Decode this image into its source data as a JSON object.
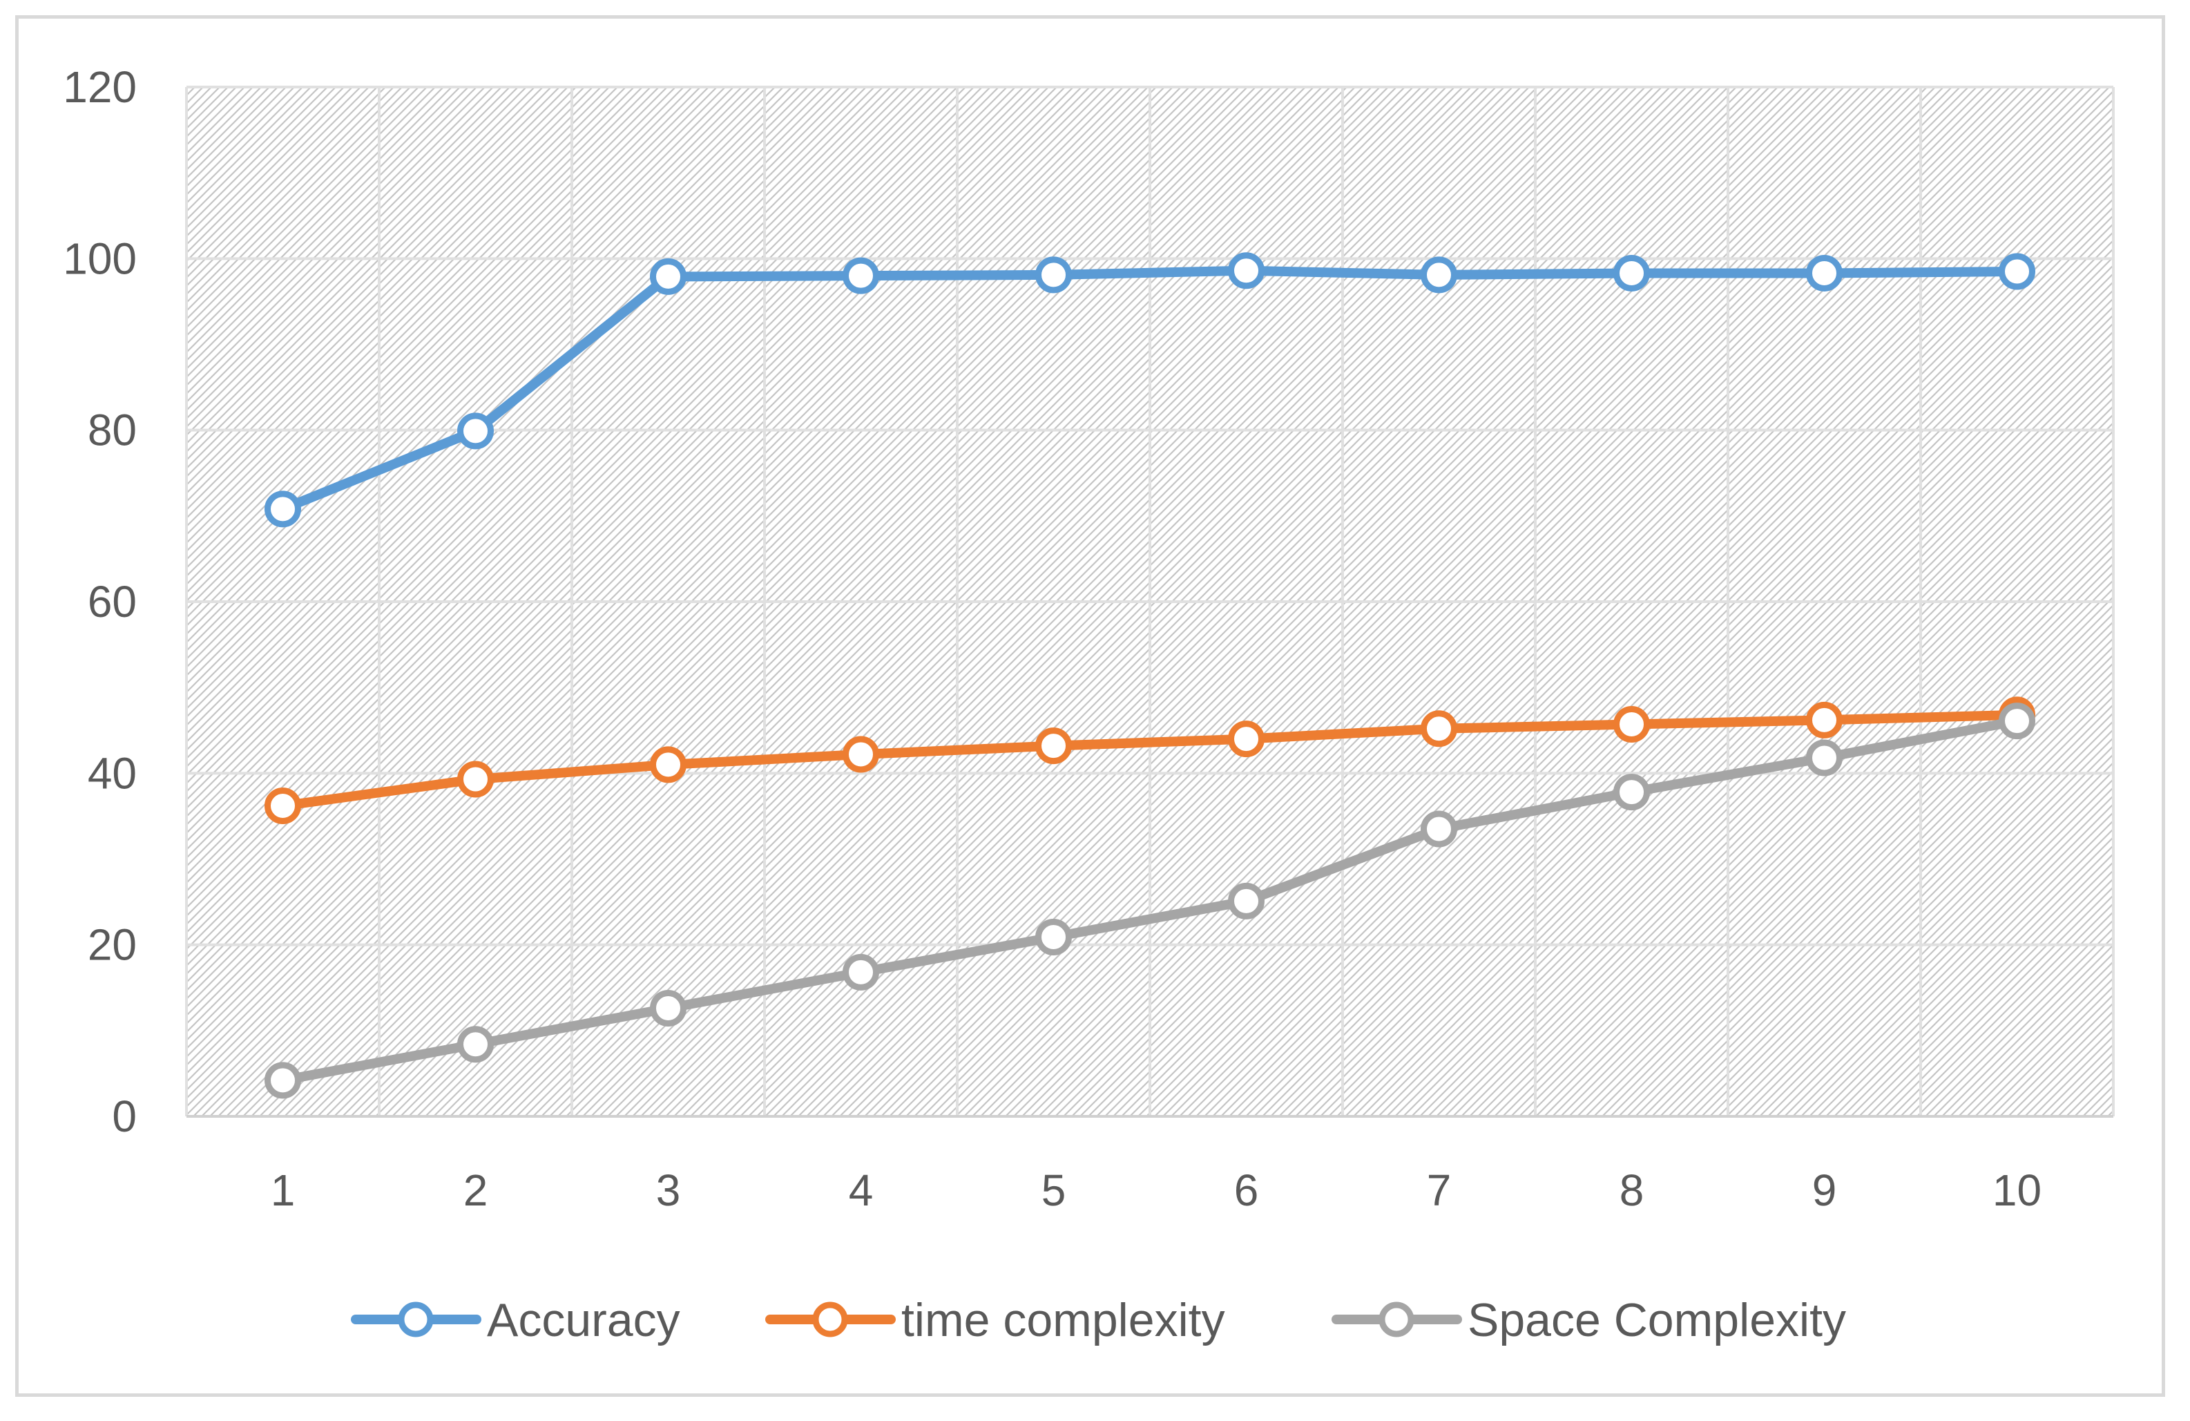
{
  "chart_data": {
    "type": "line",
    "title": "",
    "xlabel": "",
    "ylabel": "",
    "x": [
      1,
      2,
      3,
      4,
      5,
      6,
      7,
      8,
      9,
      10
    ],
    "x_tick_labels": [
      "1",
      "2",
      "3",
      "4",
      "5",
      "6",
      "7",
      "8",
      "9",
      "10"
    ],
    "ylim": [
      0,
      120
    ],
    "y_ticks": [
      0,
      20,
      40,
      60,
      80,
      100,
      120
    ],
    "y_tick_labels": [
      "0",
      "20",
      "40",
      "60",
      "80",
      "100",
      "120"
    ],
    "grid": true,
    "legend_position": "bottom",
    "series": [
      {
        "name": "Accuracy",
        "color": "#5b9bd5",
        "values": [
          70.8,
          79.9,
          97.9,
          98.0,
          98.1,
          98.6,
          98.1,
          98.3,
          98.3,
          98.5
        ]
      },
      {
        "name": "time complexity",
        "color": "#ed7d31",
        "values": [
          36.2,
          39.3,
          41.0,
          42.2,
          43.2,
          44.0,
          45.2,
          45.7,
          46.2,
          46.8
        ]
      },
      {
        "name": "Space Complexity",
        "color": "#a5a5a5",
        "values": [
          4.2,
          8.4,
          12.6,
          16.8,
          20.9,
          25.1,
          33.5,
          37.8,
          41.8,
          46.1
        ]
      }
    ]
  }
}
